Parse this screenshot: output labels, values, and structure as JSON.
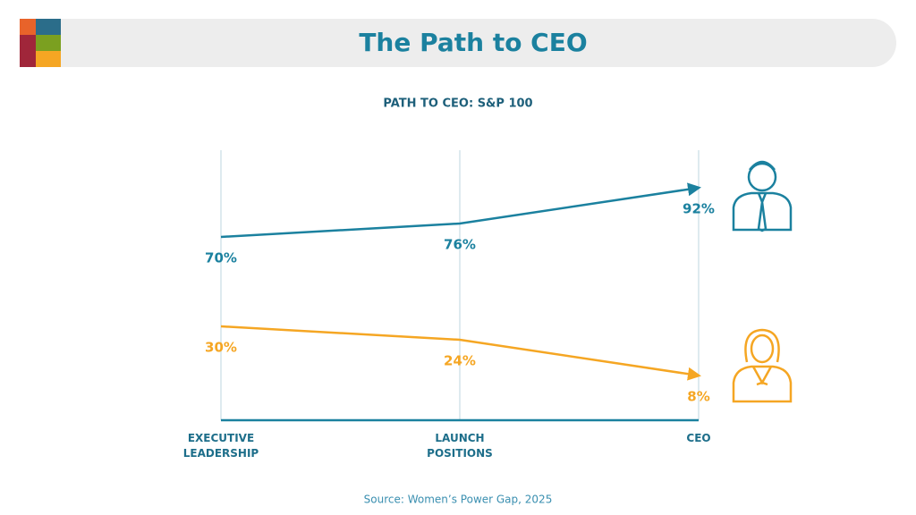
{
  "chart_data": {
    "type": "line",
    "title": "The Path to CEO",
    "subtitle": "PATH TO CEO: S&P 100",
    "source": "Source: Women’s Power Gap, 2025",
    "categories": [
      "EXECUTIVE LEADERSHIP",
      "LAUNCH POSITIONS",
      "CEO"
    ],
    "series": [
      {
        "color": "#1b819f",
        "values": [
          70,
          76,
          92
        ],
        "value_labels": [
          "70%",
          "76%",
          "92%"
        ]
      },
      {
        "color": "#f5a623",
        "values": [
          30,
          24,
          8
        ],
        "value_labels": [
          "30%",
          "24%",
          "8%"
        ]
      }
    ]
  }
}
